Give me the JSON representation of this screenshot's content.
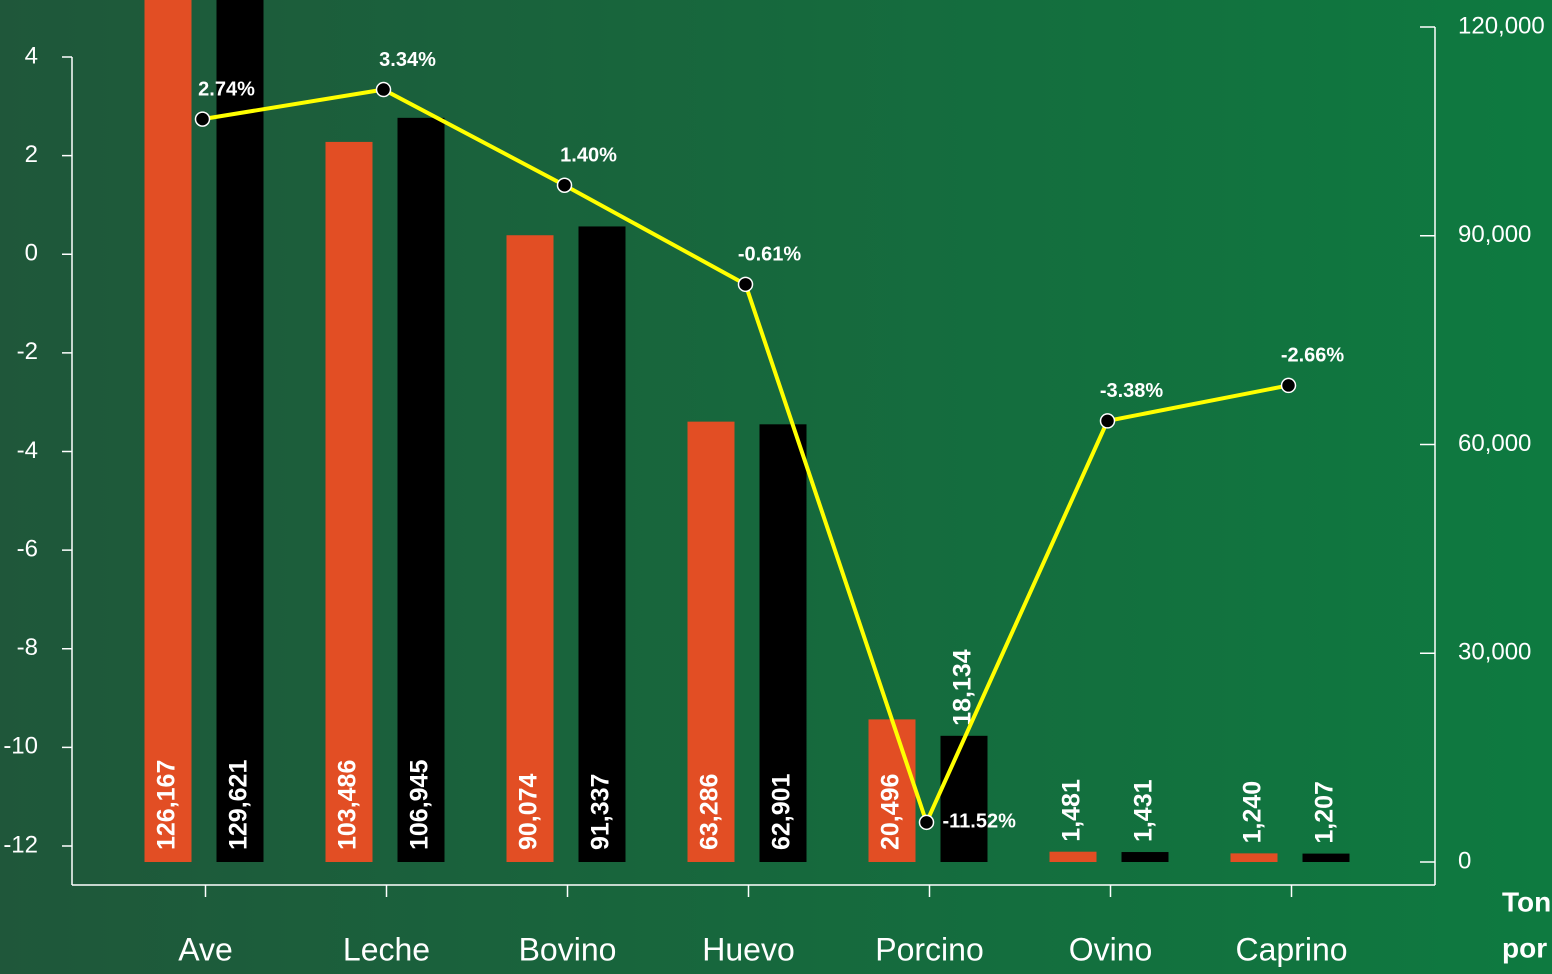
{
  "chart_data": {
    "type": "bar",
    "categories": [
      "Ave",
      "Leche",
      "Bovino",
      "Huevo",
      "Porcino",
      "Ovino",
      "Caprino"
    ],
    "series": [
      {
        "color": "#e24e24",
        "axis": "y2",
        "values": [
          126167,
          103486,
          90074,
          63286,
          20496,
          1481,
          1240
        ],
        "value_labels": [
          "126,167",
          "103,486",
          "90,074",
          "63,286",
          "20,496",
          "1,481",
          "1,240"
        ]
      },
      {
        "color": "#000000",
        "axis": "y2",
        "values": [
          129621,
          106945,
          91337,
          62901,
          18134,
          1431,
          1207
        ],
        "value_labels": [
          "129,621",
          "106,945",
          "91,337",
          "62,901",
          "18,134",
          "1,431",
          "1,207"
        ]
      },
      {
        "type": "line",
        "color": "#ffff00",
        "values": [
          2.74,
          3.34,
          1.4,
          -0.61,
          -11.52,
          -3.38,
          -2.66
        ],
        "value_labels": [
          "2.74%",
          "3.34%",
          "1.40%",
          "-0.61%",
          "-11.52%",
          "-3.38%",
          "-2.66%"
        ]
      }
    ],
    "ylim": [
      -12,
      4
    ],
    "yticks": [
      4,
      2,
      0,
      -2,
      -4,
      -6,
      -8,
      -10,
      -12
    ],
    "y2lim": [
      0,
      120000
    ],
    "y2ticks": [
      {
        "value": 120000,
        "label": "120,000"
      },
      {
        "value": 90000,
        "label": "90,000"
      },
      {
        "value": 60000,
        "label": "60,000"
      },
      {
        "value": 30000,
        "label": "30,000"
      },
      0
    ],
    "y2label": [
      "Ton",
      "por"
    ]
  }
}
